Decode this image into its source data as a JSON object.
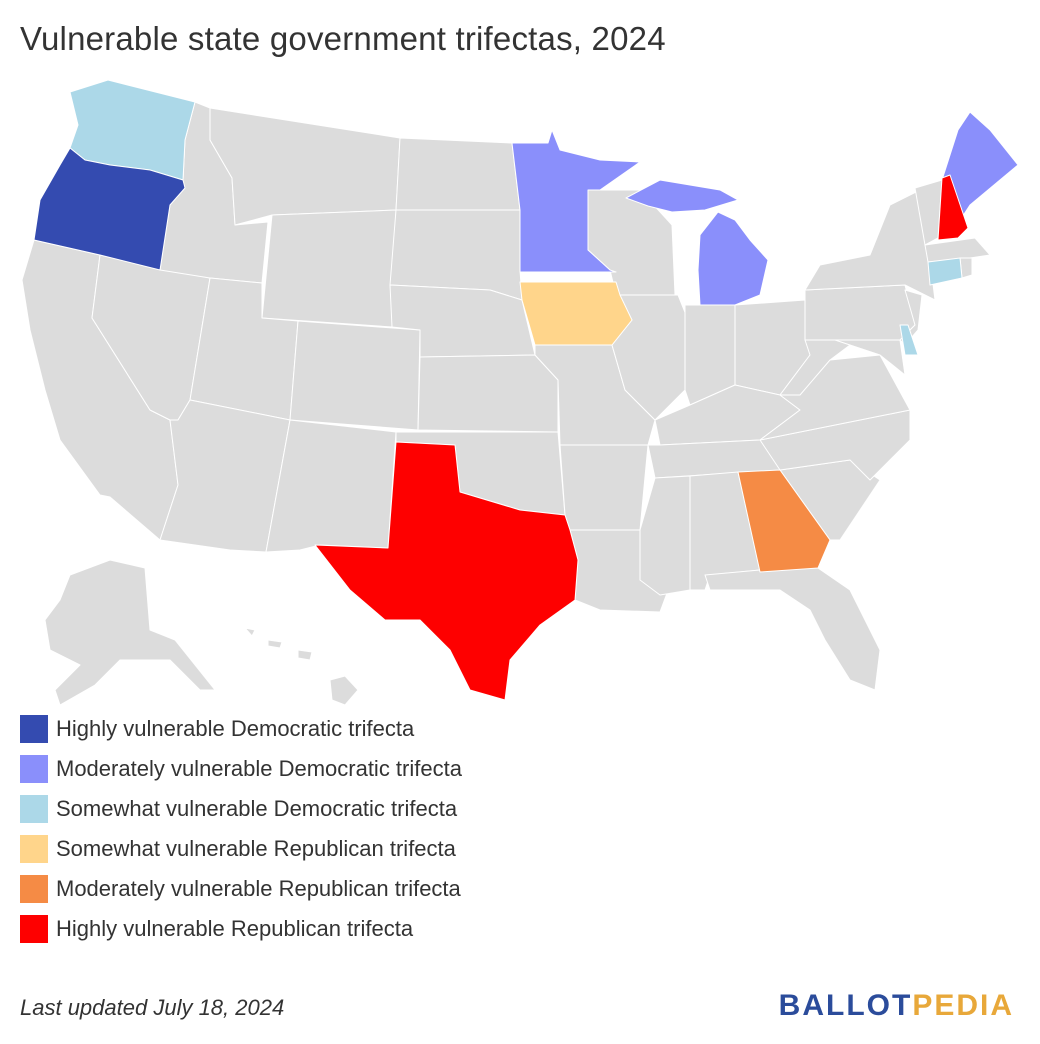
{
  "title": "Vulnerable state government trifectas, 2024",
  "legend": [
    {
      "label": "Highly vulnerable Democratic trifecta",
      "color": "#344bb0"
    },
    {
      "label": "Moderately vulnerable Democratic trifecta",
      "color": "#8a8ffb"
    },
    {
      "label": "Somewhat vulnerable Democratic trifecta",
      "color": "#acd8e8"
    },
    {
      "label": "Somewhat vulnerable Republican trifecta",
      "color": "#ffd58b"
    },
    {
      "label": "Moderately vulnerable Republican trifecta",
      "color": "#f58b45"
    },
    {
      "label": "Highly vulnerable Republican trifecta",
      "color": "#fe0000"
    }
  ],
  "default_state_color": "#dcdcdc",
  "state_categories": {
    "Oregon": "Highly vulnerable Democratic trifecta",
    "Minnesota": "Moderately vulnerable Democratic trifecta",
    "Michigan": "Moderately vulnerable Democratic trifecta",
    "Maine": "Moderately vulnerable Democratic trifecta",
    "Washington": "Somewhat vulnerable Democratic trifecta",
    "Connecticut": "Somewhat vulnerable Democratic trifecta",
    "Delaware": "Somewhat vulnerable Democratic trifecta",
    "Iowa": "Somewhat vulnerable Republican trifecta",
    "Georgia": "Moderately vulnerable Republican trifecta",
    "Texas": "Highly vulnerable Republican trifecta",
    "New Hampshire": "Highly vulnerable Republican trifecta"
  },
  "footer": {
    "updated": "Last updated July 18, 2024",
    "brand_part1": "BALLOT",
    "brand_part2": "PEDIA"
  }
}
